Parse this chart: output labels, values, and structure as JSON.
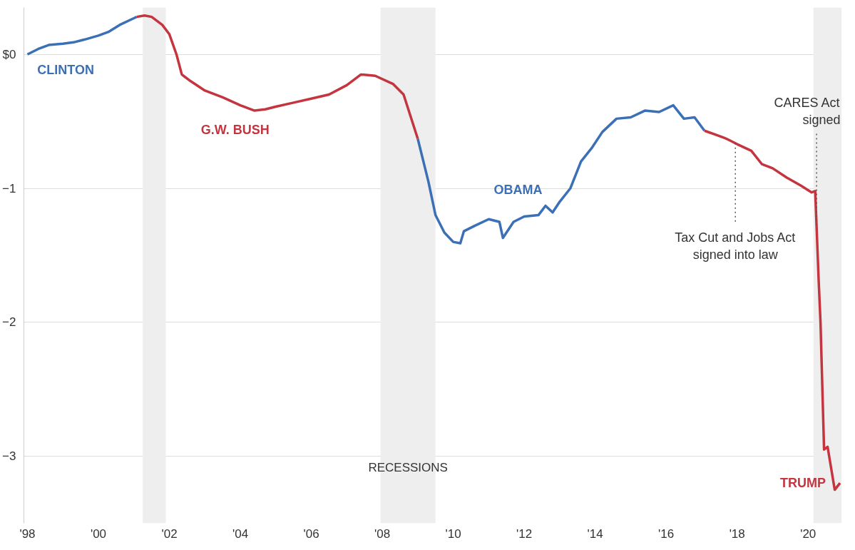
{
  "chart_data": {
    "type": "line",
    "xlim": [
      1997.9,
      2020.95
    ],
    "ylim": [
      -3.5,
      0.35
    ],
    "xticks": [
      {
        "value": 1998,
        "label": "'98"
      },
      {
        "value": 2000,
        "label": "'00"
      },
      {
        "value": 2002,
        "label": "'02"
      },
      {
        "value": 2004,
        "label": "'04"
      },
      {
        "value": 2006,
        "label": "'06"
      },
      {
        "value": 2008,
        "label": "'08"
      },
      {
        "value": 2010,
        "label": "'10"
      },
      {
        "value": 2012,
        "label": "'12"
      },
      {
        "value": 2014,
        "label": "'14"
      },
      {
        "value": 2016,
        "label": "'16"
      },
      {
        "value": 2018,
        "label": "'18"
      },
      {
        "value": 2020,
        "label": "'20"
      }
    ],
    "yticks": [
      {
        "value": 0,
        "label": "$0"
      },
      -1,
      -2,
      -3
    ],
    "grid": "y",
    "marker": "none",
    "line_style": "solid",
    "series": [
      {
        "name": "CLINTON",
        "color": "#3b6fb6",
        "x": [
          1998.0,
          1998.3,
          1998.6,
          1999.0,
          1999.3,
          1999.6,
          2000.0,
          2000.3,
          2000.6,
          2001.0,
          2001.08
        ],
        "values": [
          0.0,
          0.04,
          0.07,
          0.08,
          0.09,
          0.11,
          0.14,
          0.17,
          0.22,
          0.27,
          0.28
        ]
      },
      {
        "name": "G.W. BUSH",
        "color": "#c4353f",
        "x": [
          2001.08,
          2001.3,
          2001.5,
          2001.8,
          2002.0,
          2002.2,
          2002.35,
          2002.6,
          2003.0,
          2003.5,
          2004.0,
          2004.4,
          2004.7,
          2005.0,
          2005.5,
          2006.0,
          2006.5,
          2007.0,
          2007.4,
          2007.8,
          2008.3,
          2008.6,
          2009.0
        ],
        "values": [
          0.28,
          0.29,
          0.28,
          0.22,
          0.15,
          0.0,
          -0.15,
          -0.2,
          -0.27,
          -0.32,
          -0.38,
          -0.42,
          -0.41,
          -0.39,
          -0.36,
          -0.33,
          -0.3,
          -0.23,
          -0.15,
          -0.16,
          -0.22,
          -0.3,
          -0.63
        ]
      },
      {
        "name": "OBAMA",
        "color": "#3b6fb6",
        "x": [
          2009.0,
          2009.3,
          2009.5,
          2009.75,
          2010.0,
          2010.2,
          2010.3,
          2010.6,
          2011.0,
          2011.3,
          2011.4,
          2011.7,
          2012.0,
          2012.4,
          2012.6,
          2012.8,
          2013.0,
          2013.3,
          2013.6,
          2013.9,
          2014.2,
          2014.6,
          2015.0,
          2015.4,
          2015.8,
          2016.2,
          2016.5,
          2016.8,
          2017.08
        ],
        "values": [
          -0.63,
          -0.95,
          -1.2,
          -1.33,
          -1.4,
          -1.41,
          -1.32,
          -1.28,
          -1.23,
          -1.25,
          -1.37,
          -1.25,
          -1.21,
          -1.2,
          -1.13,
          -1.18,
          -1.1,
          -1.0,
          -0.8,
          -0.7,
          -0.58,
          -0.48,
          -0.47,
          -0.42,
          -0.43,
          -0.38,
          -0.48,
          -0.47,
          -0.57
        ]
      },
      {
        "name": "TRUMP",
        "color": "#c4353f",
        "x": [
          2017.08,
          2017.4,
          2017.7,
          2018.0,
          2018.4,
          2018.7,
          2019.0,
          2019.4,
          2019.8,
          2020.1,
          2020.2,
          2020.3,
          2020.35,
          2020.45,
          2020.55,
          2020.75,
          2020.9
        ],
        "values": [
          -0.57,
          -0.6,
          -0.63,
          -0.67,
          -0.72,
          -0.82,
          -0.85,
          -0.92,
          -0.98,
          -1.03,
          -1.02,
          -1.7,
          -2.0,
          -2.95,
          -2.93,
          -3.25,
          -3.2
        ]
      }
    ],
    "bands": [
      {
        "axis": "x",
        "from": 2001.25,
        "to": 2001.9,
        "label": null,
        "color": "#eeeeee"
      },
      {
        "axis": "x",
        "from": 2007.95,
        "to": 2009.5,
        "label": "RECESSIONS",
        "color": "#eeeeee"
      },
      {
        "axis": "x",
        "from": 2020.15,
        "to": 2020.95,
        "label": null,
        "color": "#eeeeee"
      }
    ],
    "ref_lines": [
      {
        "axis": "x",
        "value": 2017.95,
        "label": "Tax Cut and Jobs Act\nsigned into law",
        "line_style": "dotted",
        "color": "#555555"
      },
      {
        "axis": "x",
        "value": 2020.24,
        "label": "CARES Act\nsigned",
        "line_style": "dotted",
        "color": "#555555"
      }
    ]
  }
}
